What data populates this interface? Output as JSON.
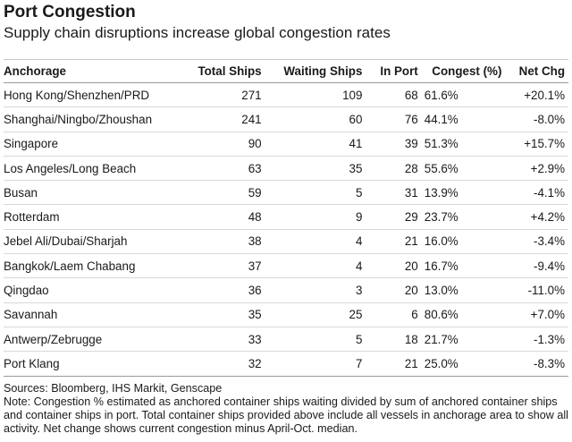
{
  "title": "Port Congestion",
  "subtitle": "Supply chain disruptions increase global congestion rates",
  "chart_data": {
    "type": "table",
    "columns": [
      "Anchorage",
      "Total Ships",
      "Waiting Ships",
      "In Port",
      "Congest (%)",
      "Net Chg"
    ],
    "rows": [
      [
        "Hong Kong/Shenzhen/PRD",
        "271",
        "109",
        "68",
        "61.6%",
        "+20.1%"
      ],
      [
        "Shanghai/Ningbo/Zhoushan",
        "241",
        "60",
        "76",
        "44.1%",
        "-8.0%"
      ],
      [
        "Singapore",
        "90",
        "41",
        "39",
        "51.3%",
        "+15.7%"
      ],
      [
        "Los Angeles/Long Beach",
        "63",
        "35",
        "28",
        "55.6%",
        "+2.9%"
      ],
      [
        "Busan",
        "59",
        "5",
        "31",
        "13.9%",
        "-4.1%"
      ],
      [
        "Rotterdam",
        "48",
        "9",
        "29",
        "23.7%",
        "+4.2%"
      ],
      [
        "Jebel Ali/Dubai/Sharjah",
        "38",
        "4",
        "21",
        "16.0%",
        "-3.4%"
      ],
      [
        "Bangkok/Laem Chabang",
        "37",
        "4",
        "20",
        "16.7%",
        "-9.4%"
      ],
      [
        "Qingdao",
        "36",
        "3",
        "20",
        "13.0%",
        "-11.0%"
      ],
      [
        "Savannah",
        "35",
        "25",
        "6",
        "80.6%",
        "+7.0%"
      ],
      [
        "Antwerp/Zebrugge",
        "33",
        "5",
        "18",
        "21.7%",
        "-1.3%"
      ],
      [
        "Port Klang",
        "32",
        "7",
        "21",
        "25.0%",
        "-8.3%"
      ]
    ]
  },
  "notes": {
    "sources": "Sources: Bloomberg, IHS Markit, Genscape",
    "note": "Note: Congestion % estimated as anchored container ships waiting divided by sum of anchored container ships and container ships in port. Total container ships provided above include all vessels in anchorage area to show all activity. Net change shows current congestion minus April-Oct. median."
  }
}
